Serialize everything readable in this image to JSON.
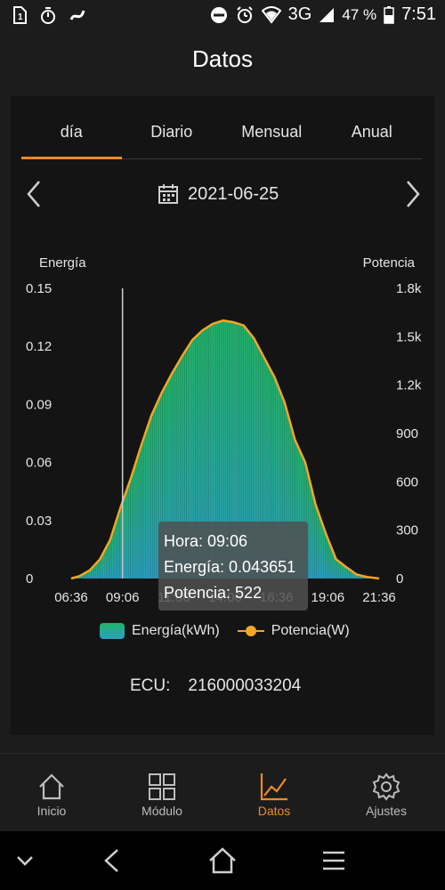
{
  "status_bar": {
    "battery_percent": "47 %",
    "network": "3G",
    "time": "7:51"
  },
  "header": {
    "title": "Datos"
  },
  "tabs": [
    {
      "label": "día",
      "active": true
    },
    {
      "label": "Diario",
      "active": false
    },
    {
      "label": "Mensual",
      "active": false
    },
    {
      "label": "Anual",
      "active": false
    }
  ],
  "date_nav": {
    "date": "2021-06-25"
  },
  "chart_data": {
    "type": "area",
    "left_axis_title": "Energía",
    "right_axis_title": "Potencia",
    "y_left_ticks": [
      "0.15",
      "0.12",
      "0.09",
      "0.06",
      "0.03",
      "0"
    ],
    "y_right_ticks": [
      "1.8k",
      "1.5k",
      "1.2k",
      "900",
      "600",
      "300",
      "0"
    ],
    "x_ticks": [
      "06:36",
      "09:06",
      "11:36",
      "14:06",
      "16:36",
      "19:06",
      "21:36"
    ],
    "ylim_left": [
      0,
      0.15
    ],
    "ylim_right": [
      0,
      1800
    ],
    "x_hours": [
      6.6,
      7.0,
      7.5,
      8.0,
      8.5,
      9.0,
      9.5,
      10.0,
      10.5,
      11.0,
      11.5,
      12.0,
      12.5,
      13.0,
      13.5,
      14.0,
      14.5,
      15.0,
      15.5,
      16.0,
      16.5,
      17.0,
      17.5,
      18.0,
      18.5,
      19.0,
      19.5,
      20.0,
      20.5,
      21.0,
      21.6
    ],
    "series": [
      {
        "name": "Energía(kWh)",
        "values": [
          0.0,
          0.001,
          0.004,
          0.01,
          0.02,
          0.037,
          0.052,
          0.068,
          0.084,
          0.096,
          0.106,
          0.115,
          0.123,
          0.128,
          0.132,
          0.134,
          0.133,
          0.131,
          0.124,
          0.114,
          0.104,
          0.091,
          0.072,
          0.06,
          0.038,
          0.023,
          0.01,
          0.006,
          0.002,
          0.001,
          0.0
        ]
      },
      {
        "name": "Potencia(W)",
        "values": [
          0,
          15,
          50,
          120,
          240,
          440,
          620,
          820,
          1010,
          1150,
          1270,
          1380,
          1480,
          1540,
          1580,
          1600,
          1590,
          1570,
          1490,
          1370,
          1250,
          1090,
          860,
          720,
          460,
          280,
          120,
          70,
          25,
          10,
          0
        ]
      }
    ],
    "tooltip": {
      "hora": "Hora: 09:06",
      "energia": "Energía: 0.043651",
      "potencia": "Potencia: 522"
    },
    "colors": {
      "power": "#f5a623",
      "energy_top": "#22b36a",
      "energy_bottom": "#2aa0c0"
    }
  },
  "legend": {
    "energy": "Energía(kWh)",
    "power": "Potencia(W)"
  },
  "ecu": {
    "label": "ECU:",
    "value": "216000033204"
  },
  "bottom_nav": [
    {
      "label": "Inicio",
      "icon": "home-icon"
    },
    {
      "label": "Módulo",
      "icon": "grid-icon"
    },
    {
      "label": "Datos",
      "icon": "chart-icon",
      "active": true
    },
    {
      "label": "Ajustes",
      "icon": "gear-icon"
    }
  ],
  "accent": "#f08a24"
}
